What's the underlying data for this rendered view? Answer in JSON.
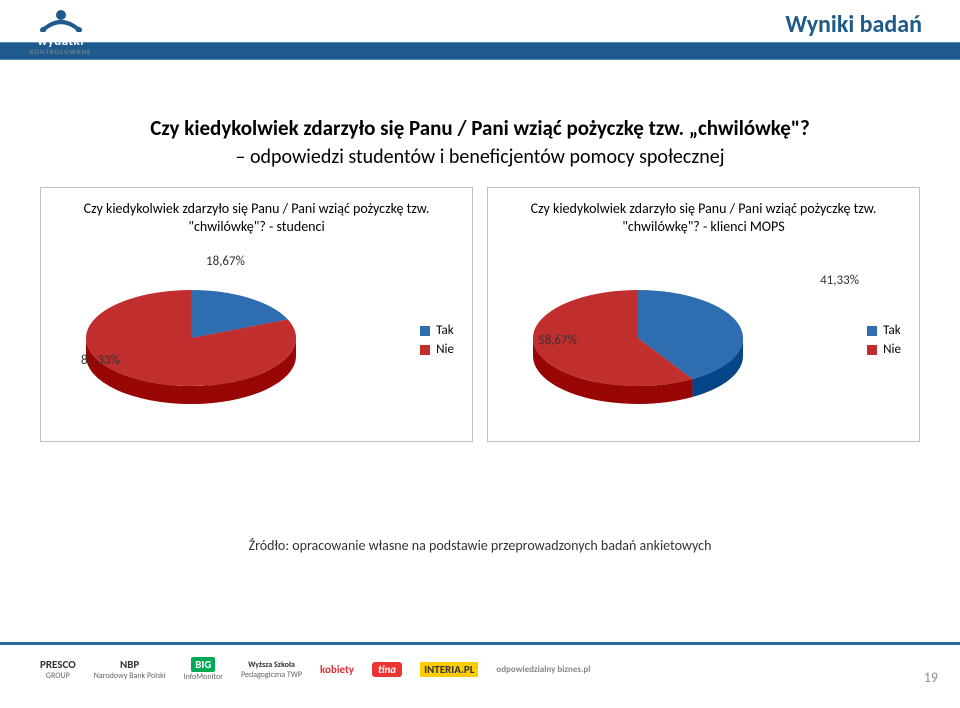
{
  "header": {
    "page_title": "Wyniki badań",
    "logo_main": "wydatki",
    "logo_sub": "KONTROLOWANE",
    "bar_color": "#1f5a8c"
  },
  "question": {
    "line1": "Czy kiedykolwiek zdarzyło się Panu / Pani wziąć pożyczkę tzw. „chwilówkę\"?",
    "line2": "– odpowiedzi studentów i beneficjentów pomocy społecznej"
  },
  "charts": {
    "colors": {
      "tak": "#2e6eb0",
      "nie": "#c02e2e"
    },
    "legend": {
      "tak_label": "Tak",
      "nie_label": "Nie"
    },
    "left": {
      "type": "pie",
      "title": "Czy kiedykolwiek zdarzyło się Panu / Pani wziąć pożyczkę tzw. \"chwilówkę\"? - studenci",
      "slices": [
        {
          "key": "tak",
          "label": "18,67%",
          "value": 18.67
        },
        {
          "key": "nie",
          "label": "81,33%",
          "value": 81.33
        }
      ]
    },
    "right": {
      "type": "pie",
      "title": "Czy kiedykolwiek zdarzyło się Panu / Pani wziąć pożyczkę tzw. \"chwilówkę\"? - klienci MOPS",
      "slices": [
        {
          "key": "tak",
          "label": "41,33%",
          "value": 41.33
        },
        {
          "key": "nie",
          "label": "58,67%",
          "value": 58.67
        }
      ]
    }
  },
  "source": "Źródło: opracowanie własne na podstawie przeprowadzonych badań ankietowych",
  "footer": {
    "brands": [
      "PRESCO",
      "NBP",
      "BIG",
      "Wyższa Szkoła",
      "kobiety",
      "tina",
      "INTERIA.PL",
      "odpowiedzialny biznes.pl"
    ]
  },
  "page_number": "19"
}
